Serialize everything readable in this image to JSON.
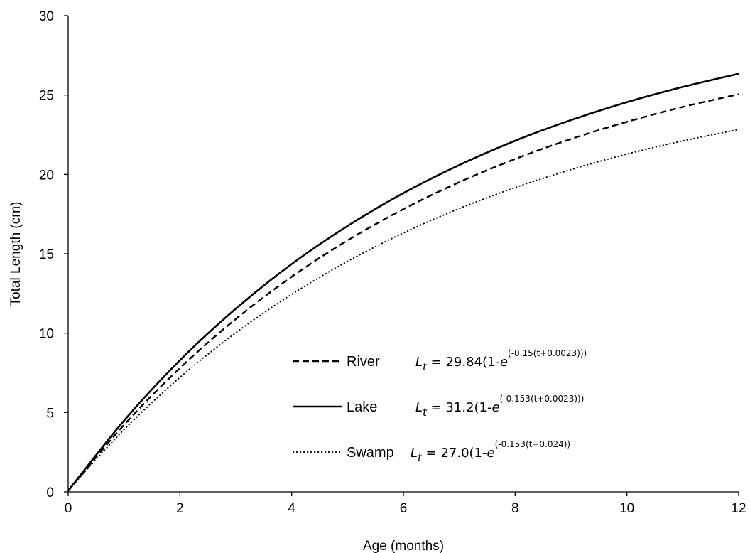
{
  "chart_data": {
    "type": "line",
    "title": "",
    "xlabel": "Age (months)",
    "ylabel": "Total Length (cm)",
    "xlim": [
      0,
      12
    ],
    "ylim": [
      0,
      30
    ],
    "xticks": [
      0,
      2,
      4,
      6,
      8,
      10,
      12
    ],
    "yticks": [
      0,
      5,
      10,
      15,
      20,
      25,
      30
    ],
    "grid": false,
    "legend_position": "lower-right",
    "series": [
      {
        "name": "River",
        "style": "dashed",
        "color": "#000000",
        "equation": {
          "lhs": "L",
          "sub": "t",
          "rest": " = 29.84(1-",
          "e": "e",
          "exp": "(-0.15(t+0.0023)))"
        },
        "x": [
          0,
          1,
          2,
          3,
          4,
          5,
          6,
          7,
          8,
          9,
          10,
          11,
          12
        ],
        "y": [
          0.06,
          4.22,
          7.8,
          10.89,
          13.55,
          15.84,
          17.81,
          19.51,
          20.97,
          22.23,
          23.31,
          24.25,
          25.05
        ]
      },
      {
        "name": "Lake",
        "style": "solid",
        "color": "#000000",
        "equation": {
          "lhs": "L",
          "sub": "t",
          "rest": " = 31.2(1-",
          "e": "e",
          "exp": "(-0.153(t+0.0023)))"
        },
        "x": [
          0,
          1,
          2,
          3,
          4,
          5,
          6,
          7,
          8,
          9,
          10,
          11,
          12
        ],
        "y": [
          0.07,
          4.49,
          8.29,
          11.54,
          14.35,
          16.75,
          18.82,
          20.59,
          22.12,
          23.42,
          24.55,
          25.51,
          26.34
        ]
      },
      {
        "name": "Swamp",
        "style": "dotted",
        "color": "#000000",
        "equation": {
          "lhs": "L",
          "sub": "t",
          "rest": " = 27.0(1-",
          "e": "e",
          "exp": "(-0.153(t+0.024))"
        },
        "x": [
          0,
          1,
          2,
          3,
          4,
          5,
          6,
          7,
          8,
          9,
          10,
          11,
          12
        ],
        "y": [
          0.1,
          3.92,
          7.21,
          10.02,
          12.44,
          14.52,
          16.31,
          17.85,
          19.17,
          20.3,
          21.28,
          22.11,
          22.83
        ]
      }
    ]
  }
}
